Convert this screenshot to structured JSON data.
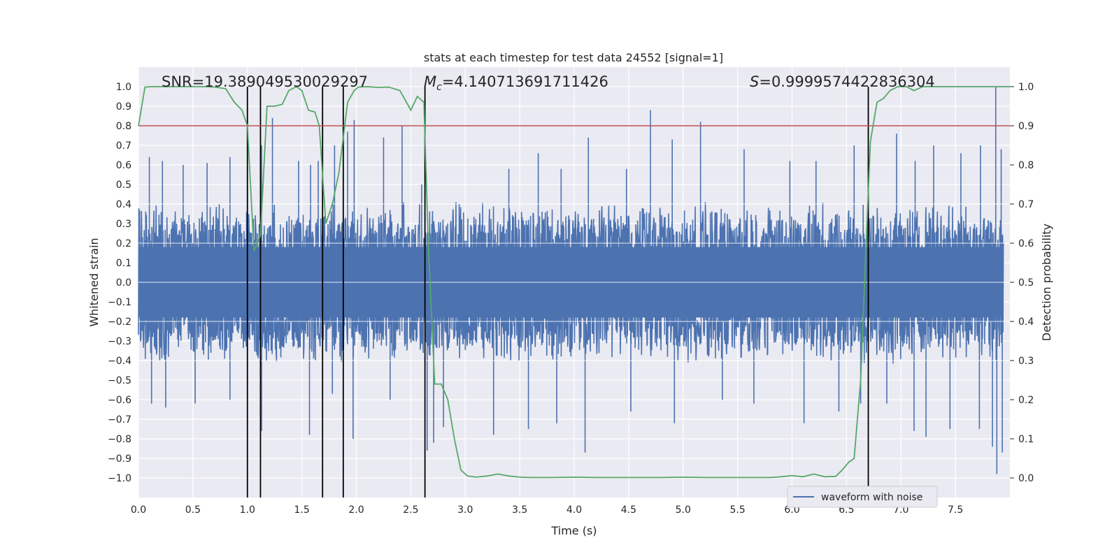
{
  "chart_data": {
    "type": "line",
    "title": "stats at each timestep for test data 24552 [signal=1]",
    "xlabel": "Time (s)",
    "ylabel": "Whitened strain",
    "y2label": "Detection probability",
    "xlim": [
      0.0,
      8.0
    ],
    "ylim": [
      -1.1,
      1.1
    ],
    "y2lim": [
      -0.05,
      1.05
    ],
    "xticks": [
      0.0,
      0.5,
      1.0,
      1.5,
      2.0,
      2.5,
      3.0,
      3.5,
      4.0,
      4.5,
      5.0,
      5.5,
      6.0,
      6.5,
      7.0,
      7.5
    ],
    "xtick_labels": [
      "0.0",
      "0.5",
      "1.0",
      "1.5",
      "2.0",
      "2.5",
      "3.0",
      "3.5",
      "4.0",
      "4.5",
      "5.0",
      "5.5",
      "6.0",
      "6.5",
      "7.0",
      "7.5"
    ],
    "yticks": [
      -1.0,
      -0.9,
      -0.8,
      -0.7,
      -0.6,
      -0.5,
      -0.4,
      -0.3,
      -0.2,
      -0.1,
      0.0,
      0.1,
      0.2,
      0.3,
      0.4,
      0.5,
      0.6,
      0.7,
      0.8,
      0.9,
      1.0
    ],
    "ytick_labels": [
      "−1.0",
      "−0.9",
      "−0.8",
      "−0.7",
      "−0.6",
      "−0.5",
      "−0.4",
      "−0.3",
      "−0.2",
      "−0.1",
      "0.0",
      "0.1",
      "0.2",
      "0.3",
      "0.4",
      "0.5",
      "0.6",
      "0.7",
      "0.8",
      "0.9",
      "1.0"
    ],
    "y2ticks": [
      0.0,
      0.1,
      0.2,
      0.3,
      0.4,
      0.5,
      0.6,
      0.7,
      0.8,
      0.9,
      1.0
    ],
    "y2tick_labels": [
      "0.0",
      "0.1",
      "0.2",
      "0.3",
      "0.4",
      "0.5",
      "0.6",
      "0.7",
      "0.8",
      "0.9",
      "1.0"
    ],
    "annotations": {
      "snr_label": "SNR=19.389049530029297",
      "mc_symbol": "M",
      "mc_subscript": "c",
      "mc_value": "=4.140713691711426",
      "s_symbol": "S",
      "s_value": "=0.9999574422836304"
    },
    "threshold": {
      "value": 0.9,
      "axis": "right",
      "color": "#c44e52"
    },
    "vertical_lines_x": [
      1.0,
      1.12,
      1.69,
      1.88,
      2.63,
      6.7
    ],
    "vertical_lines_y_range": [
      -0.05,
      1.0
    ],
    "legend": {
      "position": "lower-right",
      "label": "waveform with noise"
    },
    "series": [
      {
        "name": "waveform with noise",
        "axis": "left",
        "color": "#4c72b0",
        "envelope_note": "dense noise, approx ±0.4 with spikes to ±0.6–1.0",
        "spikes": [
          [
            0.1,
            0.64
          ],
          [
            0.22,
            0.62
          ],
          [
            0.41,
            0.6
          ],
          [
            0.63,
            0.61
          ],
          [
            0.84,
            0.64
          ],
          [
            1.0,
            0.58
          ],
          [
            1.13,
            0.7
          ],
          [
            1.23,
            0.84
          ],
          [
            1.47,
            0.62
          ],
          [
            1.58,
            0.6
          ],
          [
            1.65,
            0.62
          ],
          [
            1.8,
            0.7
          ],
          [
            1.92,
            0.77
          ],
          [
            1.98,
            0.83
          ],
          [
            2.25,
            0.74
          ],
          [
            2.42,
            0.8
          ],
          [
            2.6,
            0.5
          ],
          [
            3.4,
            0.58
          ],
          [
            3.67,
            0.66
          ],
          [
            3.88,
            0.58
          ],
          [
            4.13,
            0.74
          ],
          [
            4.48,
            0.58
          ],
          [
            4.7,
            0.88
          ],
          [
            4.9,
            0.73
          ],
          [
            5.16,
            0.82
          ],
          [
            5.56,
            0.68
          ],
          [
            5.98,
            0.62
          ],
          [
            6.22,
            0.62
          ],
          [
            6.57,
            0.7
          ],
          [
            6.96,
            0.76
          ],
          [
            7.13,
            0.62
          ],
          [
            7.3,
            0.7
          ],
          [
            7.55,
            0.66
          ],
          [
            7.73,
            0.7
          ],
          [
            7.87,
            1.0
          ],
          [
            7.92,
            0.68
          ],
          [
            0.12,
            -0.62
          ],
          [
            0.25,
            -0.64
          ],
          [
            0.52,
            -0.62
          ],
          [
            0.84,
            -0.6
          ],
          [
            1.13,
            -0.76
          ],
          [
            1.57,
            -0.78
          ],
          [
            1.78,
            -0.57
          ],
          [
            1.97,
            -0.8
          ],
          [
            2.31,
            -0.6
          ],
          [
            2.65,
            -0.86
          ],
          [
            2.71,
            -0.82
          ],
          [
            2.8,
            -0.74
          ],
          [
            3.26,
            -0.78
          ],
          [
            3.58,
            -0.75
          ],
          [
            3.84,
            -0.72
          ],
          [
            4.1,
            -0.87
          ],
          [
            4.52,
            -0.66
          ],
          [
            4.92,
            -0.72
          ],
          [
            5.36,
            -0.6
          ],
          [
            5.65,
            -0.62
          ],
          [
            6.11,
            -0.72
          ],
          [
            6.43,
            -0.66
          ],
          [
            6.63,
            -0.62
          ],
          [
            6.87,
            -0.62
          ],
          [
            7.12,
            -0.76
          ],
          [
            7.23,
            -0.79
          ],
          [
            7.45,
            -0.75
          ],
          [
            7.72,
            -0.75
          ],
          [
            7.84,
            -0.84
          ],
          [
            7.88,
            -0.98
          ],
          [
            7.93,
            -0.87
          ]
        ]
      },
      {
        "name": "detection probability",
        "axis": "right",
        "color": "#55a868",
        "x": [
          0.0,
          0.06,
          0.12,
          0.2,
          0.3,
          0.4,
          0.5,
          0.6,
          0.7,
          0.8,
          0.88,
          0.95,
          1.0,
          1.06,
          1.12,
          1.18,
          1.25,
          1.32,
          1.38,
          1.45,
          1.5,
          1.56,
          1.62,
          1.66,
          1.72,
          1.78,
          1.84,
          1.92,
          1.98,
          2.02,
          2.1,
          2.2,
          2.3,
          2.4,
          2.5,
          2.56,
          2.62,
          2.66,
          2.72,
          2.78,
          2.84,
          2.9,
          2.96,
          3.02,
          3.1,
          3.2,
          3.3,
          3.4,
          3.5,
          3.6,
          3.8,
          4.0,
          4.2,
          4.4,
          4.6,
          4.8,
          5.0,
          5.2,
          5.4,
          5.6,
          5.8,
          5.9,
          6.0,
          6.1,
          6.2,
          6.3,
          6.4,
          6.46,
          6.52,
          6.57,
          6.63,
          6.68,
          6.72,
          6.78,
          6.84,
          6.9,
          6.97,
          7.05,
          7.12,
          7.2,
          7.3,
          7.4,
          7.5,
          7.6,
          7.7,
          7.8,
          7.9,
          8.0
        ],
        "y": [
          0.9,
          0.999,
          1.0,
          1.0,
          1.0,
          1.0,
          1.0,
          1.0,
          0.999,
          0.995,
          0.96,
          0.94,
          0.9,
          0.58,
          0.62,
          0.95,
          0.95,
          0.955,
          0.99,
          1.0,
          0.99,
          0.94,
          0.935,
          0.9,
          0.65,
          0.7,
          0.78,
          0.96,
          0.99,
          0.999,
          1.0,
          0.998,
          0.999,
          0.99,
          0.94,
          0.975,
          0.96,
          0.6,
          0.24,
          0.24,
          0.2,
          0.1,
          0.02,
          0.005,
          0.002,
          0.005,
          0.01,
          0.005,
          0.002,
          0.001,
          0.001,
          0.002,
          0.001,
          0.001,
          0.001,
          0.001,
          0.002,
          0.001,
          0.001,
          0.001,
          0.001,
          0.003,
          0.006,
          0.003,
          0.01,
          0.003,
          0.004,
          0.02,
          0.04,
          0.05,
          0.25,
          0.6,
          0.86,
          0.96,
          0.97,
          0.99,
          1.0,
          1.0,
          0.99,
          1.0,
          1.0,
          1.0,
          1.0,
          1.0,
          1.0,
          1.0,
          1.0,
          1.0
        ]
      }
    ]
  }
}
